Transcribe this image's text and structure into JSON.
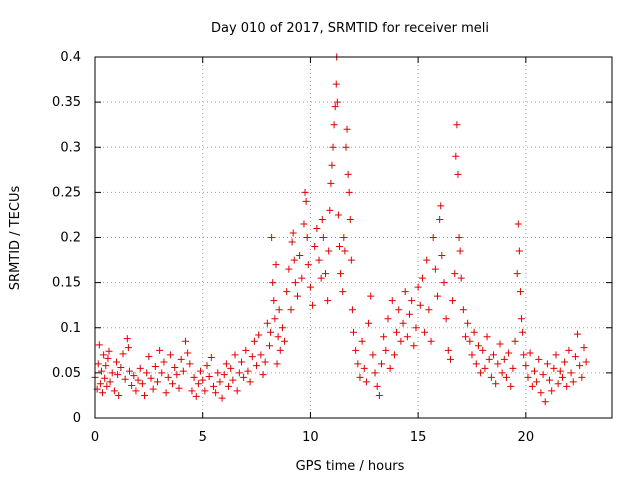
{
  "chart_data": {
    "type": "scatter",
    "title": "Day 010 of 2017, SRMTID for receiver meli",
    "xlabel": "GPS time / hours",
    "ylabel": "SRMTID / TECUs",
    "xlim": [
      0,
      24
    ],
    "ylim": [
      0,
      0.4
    ],
    "x_ticks": [
      0,
      5,
      10,
      15,
      20
    ],
    "x_tick_labels": [
      "0",
      "5",
      "10",
      "15",
      "20"
    ],
    "y_ticks": [
      0,
      0.05,
      0.1,
      0.15,
      0.2,
      0.25,
      0.3,
      0.35,
      0.4
    ],
    "y_tick_labels": [
      "0",
      "0.05",
      "0.1",
      "0.15",
      "0.2",
      "0.25",
      "0.3",
      "0.35",
      "0.4"
    ],
    "grid": true,
    "marker": "plus",
    "color": "#e00000",
    "series": [
      {
        "name": "",
        "points": [
          [
            0.0,
            0.045
          ],
          [
            0.1,
            0.032
          ],
          [
            0.15,
            0.06
          ],
          [
            0.2,
            0.081
          ],
          [
            0.25,
            0.038
          ],
          [
            0.3,
            0.052
          ],
          [
            0.35,
            0.028
          ],
          [
            0.4,
            0.07
          ],
          [
            0.45,
            0.044
          ],
          [
            0.5,
            0.058
          ],
          [
            0.55,
            0.035
          ],
          [
            0.6,
            0.066
          ],
          [
            0.65,
            0.074
          ],
          [
            0.7,
            0.04
          ],
          [
            0.8,
            0.05
          ],
          [
            0.9,
            0.03
          ],
          [
            1.0,
            0.062
          ],
          [
            1.05,
            0.048
          ],
          [
            1.1,
            0.025
          ],
          [
            1.2,
            0.056
          ],
          [
            1.3,
            0.071
          ],
          [
            1.4,
            0.043
          ],
          [
            1.5,
            0.088
          ],
          [
            1.55,
            0.078
          ],
          [
            1.6,
            0.052
          ],
          [
            1.7,
            0.036
          ],
          [
            1.8,
            0.047
          ],
          [
            1.9,
            0.03
          ],
          [
            2.0,
            0.042
          ],
          [
            2.1,
            0.055
          ],
          [
            2.2,
            0.038
          ],
          [
            2.3,
            0.025
          ],
          [
            2.4,
            0.05
          ],
          [
            2.5,
            0.068
          ],
          [
            2.6,
            0.044
          ],
          [
            2.7,
            0.032
          ],
          [
            2.8,
            0.057
          ],
          [
            2.9,
            0.04
          ],
          [
            3.0,
            0.075
          ],
          [
            3.1,
            0.05
          ],
          [
            3.2,
            0.062
          ],
          [
            3.3,
            0.028
          ],
          [
            3.4,
            0.045
          ],
          [
            3.5,
            0.07
          ],
          [
            3.6,
            0.038
          ],
          [
            3.7,
            0.056
          ],
          [
            3.8,
            0.048
          ],
          [
            3.9,
            0.033
          ],
          [
            4.0,
            0.065
          ],
          [
            4.1,
            0.052
          ],
          [
            4.2,
            0.085
          ],
          [
            4.3,
            0.072
          ],
          [
            4.4,
            0.06
          ],
          [
            4.5,
            0.03
          ],
          [
            4.6,
            0.045
          ],
          [
            4.7,
            0.024
          ],
          [
            4.8,
            0.038
          ],
          [
            4.9,
            0.052
          ],
          [
            5.0,
            0.042
          ],
          [
            5.1,
            0.03
          ],
          [
            5.2,
            0.058
          ],
          [
            5.3,
            0.046
          ],
          [
            5.4,
            0.067
          ],
          [
            5.5,
            0.035
          ],
          [
            5.6,
            0.028
          ],
          [
            5.7,
            0.05
          ],
          [
            5.8,
            0.04
          ],
          [
            5.9,
            0.022
          ],
          [
            6.0,
            0.048
          ],
          [
            6.1,
            0.06
          ],
          [
            6.2,
            0.035
          ],
          [
            6.3,
            0.055
          ],
          [
            6.4,
            0.042
          ],
          [
            6.5,
            0.07
          ],
          [
            6.6,
            0.03
          ],
          [
            6.7,
            0.05
          ],
          [
            6.8,
            0.062
          ],
          [
            6.9,
            0.045
          ],
          [
            7.0,
            0.075
          ],
          [
            7.1,
            0.052
          ],
          [
            7.2,
            0.04
          ],
          [
            7.3,
            0.068
          ],
          [
            7.4,
            0.085
          ],
          [
            7.5,
            0.058
          ],
          [
            7.6,
            0.092
          ],
          [
            7.7,
            0.07
          ],
          [
            7.8,
            0.048
          ],
          [
            7.9,
            0.062
          ],
          [
            8.0,
            0.105
          ],
          [
            8.1,
            0.08
          ],
          [
            8.15,
            0.095
          ],
          [
            8.2,
            0.2
          ],
          [
            8.25,
            0.15
          ],
          [
            8.3,
            0.13
          ],
          [
            8.35,
            0.11
          ],
          [
            8.4,
            0.17
          ],
          [
            8.45,
            0.06
          ],
          [
            8.5,
            0.09
          ],
          [
            8.55,
            0.12
          ],
          [
            8.6,
            0.075
          ],
          [
            8.7,
            0.1
          ],
          [
            8.8,
            0.085
          ],
          [
            8.9,
            0.14
          ],
          [
            9.0,
            0.165
          ],
          [
            9.1,
            0.12
          ],
          [
            9.15,
            0.195
          ],
          [
            9.2,
            0.205
          ],
          [
            9.25,
            0.175
          ],
          [
            9.3,
            0.15
          ],
          [
            9.4,
            0.135
          ],
          [
            9.5,
            0.18
          ],
          [
            9.6,
            0.155
          ],
          [
            9.7,
            0.215
          ],
          [
            9.75,
            0.25
          ],
          [
            9.8,
            0.24
          ],
          [
            9.85,
            0.2
          ],
          [
            9.9,
            0.17
          ],
          [
            10.0,
            0.145
          ],
          [
            10.1,
            0.125
          ],
          [
            10.2,
            0.19
          ],
          [
            10.3,
            0.21
          ],
          [
            10.4,
            0.175
          ],
          [
            10.5,
            0.155
          ],
          [
            10.55,
            0.22
          ],
          [
            10.6,
            0.2
          ],
          [
            10.7,
            0.16
          ],
          [
            10.8,
            0.13
          ],
          [
            10.85,
            0.185
          ],
          [
            10.9,
            0.23
          ],
          [
            10.95,
            0.26
          ],
          [
            11.0,
            0.28
          ],
          [
            11.05,
            0.3
          ],
          [
            11.1,
            0.325
          ],
          [
            11.15,
            0.345
          ],
          [
            11.2,
            0.37
          ],
          [
            11.22,
            0.4
          ],
          [
            11.25,
            0.35
          ],
          [
            11.3,
            0.225
          ],
          [
            11.35,
            0.19
          ],
          [
            11.4,
            0.16
          ],
          [
            11.5,
            0.14
          ],
          [
            11.55,
            0.2
          ],
          [
            11.6,
            0.185
          ],
          [
            11.65,
            0.3
          ],
          [
            11.7,
            0.32
          ],
          [
            11.75,
            0.27
          ],
          [
            11.8,
            0.25
          ],
          [
            11.85,
            0.22
          ],
          [
            11.9,
            0.175
          ],
          [
            11.95,
            0.12
          ],
          [
            12.0,
            0.095
          ],
          [
            12.1,
            0.075
          ],
          [
            12.2,
            0.06
          ],
          [
            12.3,
            0.045
          ],
          [
            12.4,
            0.085
          ],
          [
            12.5,
            0.055
          ],
          [
            12.6,
            0.04
          ],
          [
            12.7,
            0.105
          ],
          [
            12.8,
            0.135
          ],
          [
            12.9,
            0.07
          ],
          [
            13.0,
            0.05
          ],
          [
            13.1,
            0.035
          ],
          [
            13.2,
            0.025
          ],
          [
            13.3,
            0.06
          ],
          [
            13.4,
            0.09
          ],
          [
            13.5,
            0.075
          ],
          [
            13.6,
            0.11
          ],
          [
            13.7,
            0.055
          ],
          [
            13.8,
            0.13
          ],
          [
            13.9,
            0.07
          ],
          [
            14.0,
            0.095
          ],
          [
            14.1,
            0.12
          ],
          [
            14.2,
            0.085
          ],
          [
            14.3,
            0.105
          ],
          [
            14.4,
            0.14
          ],
          [
            14.5,
            0.09
          ],
          [
            14.6,
            0.115
          ],
          [
            14.7,
            0.13
          ],
          [
            14.8,
            0.08
          ],
          [
            14.9,
            0.1
          ],
          [
            15.0,
            0.145
          ],
          [
            15.1,
            0.125
          ],
          [
            15.2,
            0.155
          ],
          [
            15.3,
            0.095
          ],
          [
            15.4,
            0.175
          ],
          [
            15.5,
            0.12
          ],
          [
            15.6,
            0.085
          ],
          [
            15.7,
            0.2
          ],
          [
            15.8,
            0.165
          ],
          [
            15.9,
            0.135
          ],
          [
            16.0,
            0.22
          ],
          [
            16.05,
            0.235
          ],
          [
            16.1,
            0.18
          ],
          [
            16.2,
            0.15
          ],
          [
            16.3,
            0.11
          ],
          [
            16.4,
            0.075
          ],
          [
            16.5,
            0.065
          ],
          [
            16.6,
            0.13
          ],
          [
            16.7,
            0.16
          ],
          [
            16.75,
            0.29
          ],
          [
            16.8,
            0.325
          ],
          [
            16.85,
            0.27
          ],
          [
            16.9,
            0.2
          ],
          [
            16.95,
            0.185
          ],
          [
            17.0,
            0.155
          ],
          [
            17.1,
            0.12
          ],
          [
            17.2,
            0.09
          ],
          [
            17.3,
            0.105
          ],
          [
            17.4,
            0.085
          ],
          [
            17.5,
            0.07
          ],
          [
            17.6,
            0.095
          ],
          [
            17.7,
            0.06
          ],
          [
            17.8,
            0.08
          ],
          [
            17.9,
            0.05
          ],
          [
            18.0,
            0.075
          ],
          [
            18.1,
            0.055
          ],
          [
            18.2,
            0.09
          ],
          [
            18.3,
            0.065
          ],
          [
            18.4,
            0.045
          ],
          [
            18.5,
            0.07
          ],
          [
            18.6,
            0.038
          ],
          [
            18.7,
            0.06
          ],
          [
            18.8,
            0.082
          ],
          [
            18.9,
            0.05
          ],
          [
            19.0,
            0.065
          ],
          [
            19.1,
            0.045
          ],
          [
            19.2,
            0.072
          ],
          [
            19.3,
            0.035
          ],
          [
            19.4,
            0.055
          ],
          [
            19.5,
            0.085
          ],
          [
            19.6,
            0.16
          ],
          [
            19.65,
            0.215
          ],
          [
            19.7,
            0.185
          ],
          [
            19.75,
            0.14
          ],
          [
            19.8,
            0.11
          ],
          [
            19.85,
            0.095
          ],
          [
            19.9,
            0.07
          ],
          [
            20.0,
            0.058
          ],
          [
            20.1,
            0.045
          ],
          [
            20.2,
            0.072
          ],
          [
            20.3,
            0.035
          ],
          [
            20.4,
            0.052
          ],
          [
            20.5,
            0.04
          ],
          [
            20.6,
            0.065
          ],
          [
            20.7,
            0.028
          ],
          [
            20.8,
            0.048
          ],
          [
            20.9,
            0.018
          ],
          [
            21.0,
            0.06
          ],
          [
            21.1,
            0.042
          ],
          [
            21.2,
            0.03
          ],
          [
            21.3,
            0.055
          ],
          [
            21.4,
            0.07
          ],
          [
            21.5,
            0.038
          ],
          [
            21.6,
            0.052
          ],
          [
            21.7,
            0.045
          ],
          [
            21.8,
            0.062
          ],
          [
            21.9,
            0.035
          ],
          [
            22.0,
            0.075
          ],
          [
            22.1,
            0.05
          ],
          [
            22.2,
            0.04
          ],
          [
            22.3,
            0.068
          ],
          [
            22.4,
            0.093
          ],
          [
            22.5,
            0.058
          ],
          [
            22.6,
            0.045
          ],
          [
            22.7,
            0.078
          ],
          [
            22.8,
            0.062
          ]
        ]
      }
    ]
  }
}
